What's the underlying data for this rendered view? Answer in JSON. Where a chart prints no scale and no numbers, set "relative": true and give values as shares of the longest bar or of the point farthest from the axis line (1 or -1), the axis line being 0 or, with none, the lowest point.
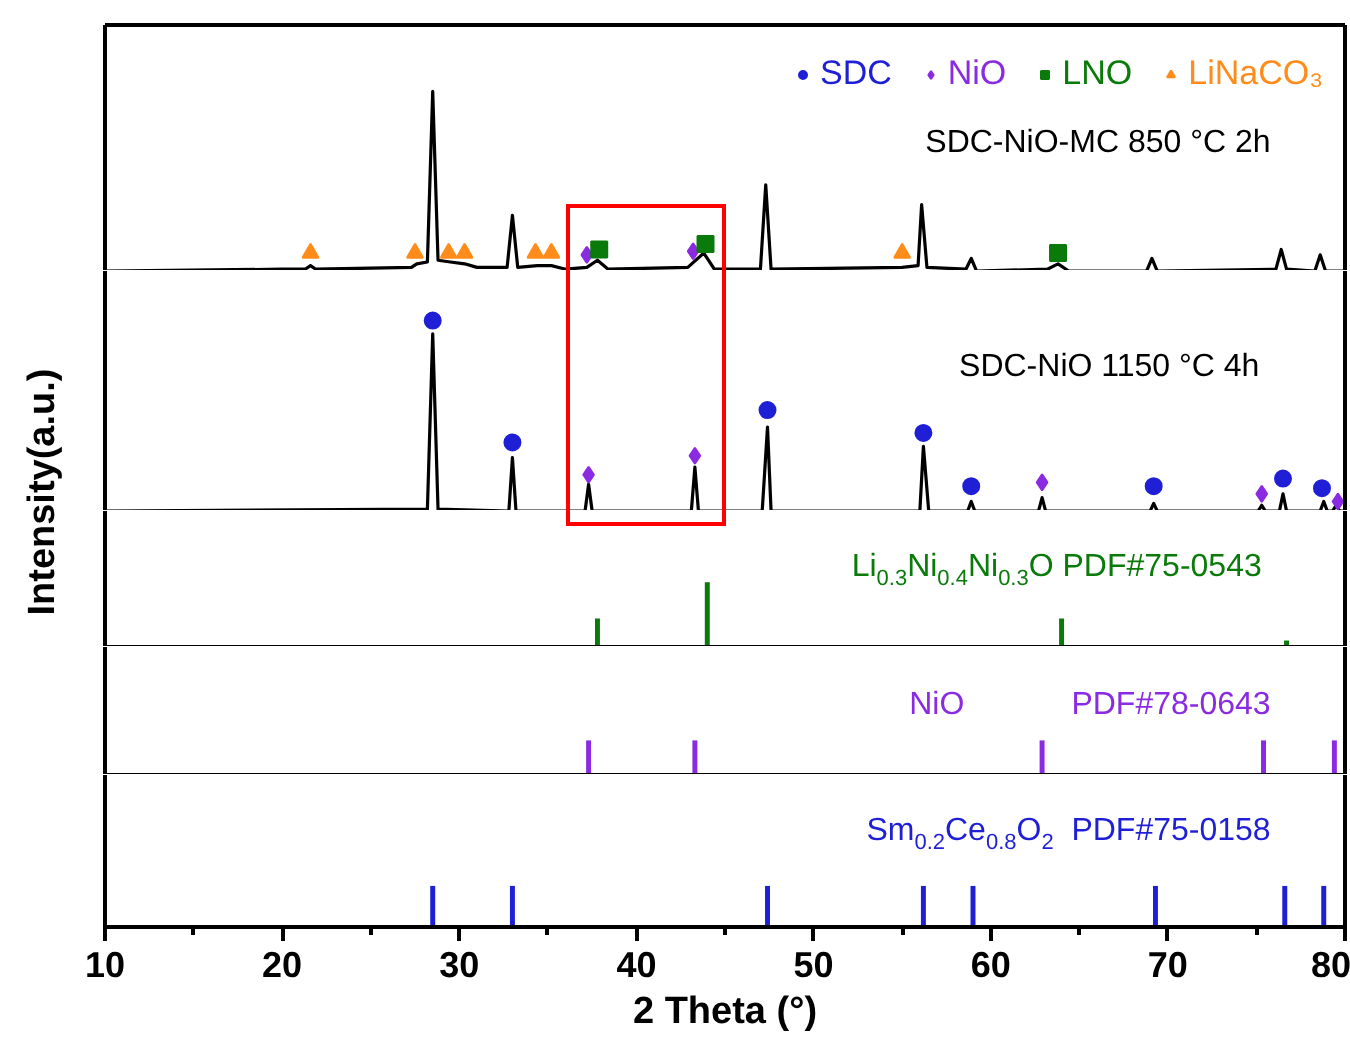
{
  "chart_data": [
    {
      "type": "line",
      "relative": true,
      "xlim": [
        10,
        80
      ],
      "tick_labels": false,
      "legend": "top right",
      "annotations": [
        "SDC-NiO-MC  850 °C 2h"
      ],
      "x": [
        10,
        20,
        21.3,
        21.6,
        21.9,
        27.3,
        27.6,
        28.2,
        28.5,
        28.8,
        29.5,
        30.3,
        31,
        32.7,
        33.0,
        33.3,
        34.4,
        35.2,
        36,
        37.2,
        37.8,
        38.4,
        42.9,
        43.8,
        44.4,
        47.0,
        47.3,
        47.6,
        55.0,
        55.9,
        56.1,
        56.4,
        58.6,
        58.9,
        59.2,
        63.2,
        63.8,
        64.4,
        68.8,
        69.1,
        69.4,
        76.1,
        76.4,
        76.7,
        78.3,
        78.6,
        78.9,
        80
      ],
      "series": [
        {
          "color": "#000000",
          "values": [
            0.0,
            0.01,
            0.01,
            0.03,
            0.01,
            0.02,
            0.04,
            0.05,
            1.0,
            0.06,
            0.05,
            0.04,
            0.02,
            0.02,
            0.31,
            0.02,
            0.03,
            0.03,
            0.01,
            0.02,
            0.06,
            0.01,
            0.02,
            0.1,
            0.01,
            0.01,
            0.48,
            0.01,
            0.02,
            0.03,
            0.37,
            0.02,
            0.01,
            0.07,
            0.0,
            0.01,
            0.04,
            0.0,
            0.0,
            0.07,
            0.0,
            0.01,
            0.12,
            0.01,
            0.0,
            0.09,
            0.0,
            0.0
          ]
        },
        {
          "type": "scatter",
          "name": "SDC",
          "color": "#1f1fd6",
          "marker": "circle",
          "values": [
            null,
            null,
            null,
            null,
            null,
            null,
            null,
            null,
            null,
            null,
            null,
            null,
            null,
            null,
            null,
            null,
            null,
            null,
            null,
            null,
            null,
            null,
            null,
            null,
            null,
            null,
            null,
            null,
            null,
            null,
            null,
            null,
            null,
            null,
            null,
            null,
            null,
            null,
            null,
            null,
            null,
            null,
            null,
            null,
            null,
            null,
            null,
            null
          ]
        },
        {
          "type": "scatter",
          "name": "NiO",
          "color": "#8a2be2",
          "marker": "diamond",
          "x": [
            37.2,
            43.2
          ],
          "values": [
            0.09,
            0.11
          ]
        },
        {
          "type": "scatter",
          "name": "LNO",
          "color": "#0a7a0a",
          "marker": "square",
          "x": [
            37.9,
            43.9,
            63.8
          ],
          "values": [
            0.12,
            0.15,
            0.1
          ]
        },
        {
          "type": "scatter",
          "name": "LiNaCO₃",
          "color": "#ff8c1a",
          "marker": "triangle",
          "x": [
            21.6,
            27.5,
            29.4,
            30.3,
            34.3,
            35.2,
            55.0
          ],
          "values": [
            0.1,
            0.1,
            0.1,
            0.1,
            0.1,
            0.1,
            0.1
          ]
        }
      ]
    },
    {
      "type": "line",
      "relative": true,
      "xlim": [
        10,
        80
      ],
      "tick_labels": false,
      "ylabel": "Intensity(a.u.)",
      "annotations": [
        "SDC-NiO  1150 °C 4h"
      ],
      "x": [
        10,
        28.2,
        28.5,
        28.8,
        32.8,
        33.0,
        33.2,
        37.1,
        37.3,
        37.5,
        43.1,
        43.3,
        43.5,
        47.1,
        47.4,
        47.6,
        56.0,
        56.2,
        56.5,
        58.7,
        58.9,
        59.1,
        62.7,
        62.9,
        63.1,
        69.0,
        69.2,
        69.4,
        75.1,
        75.3,
        75.5,
        76.3,
        76.5,
        76.7,
        78.6,
        78.8,
        79.0,
        79.3,
        79.5,
        79.7,
        80
      ],
      "series": [
        {
          "color": "#000000",
          "values": [
            0,
            0.01,
            0.93,
            0.01,
            0,
            0.28,
            0,
            0,
            0.14,
            0,
            0,
            0.23,
            0,
            0,
            0.44,
            0,
            0,
            0.34,
            0,
            0,
            0.05,
            0,
            0,
            0.07,
            0,
            0,
            0.04,
            0,
            0,
            0.03,
            0,
            0,
            0.09,
            0,
            0,
            0.05,
            0,
            0,
            0.03,
            0,
            0
          ]
        },
        {
          "type": "scatter",
          "color": "#1f1fd6",
          "marker": "circle",
          "x": [
            28.5,
            33.0,
            47.4,
            56.2,
            58.9,
            69.2,
            76.5,
            78.7
          ],
          "values": [
            1.0,
            0.36,
            0.53,
            0.41,
            0.13,
            0.13,
            0.17,
            0.12
          ]
        },
        {
          "type": "scatter",
          "color": "#8a2be2",
          "marker": "diamond",
          "x": [
            37.3,
            43.3,
            62.9,
            75.3,
            79.6
          ],
          "values": [
            0.19,
            0.29,
            0.15,
            0.09,
            0.05
          ]
        }
      ]
    },
    {
      "type": "bar",
      "relative": true,
      "xlim": [
        10,
        80
      ],
      "tick_labels": false,
      "annotations": [
        "Li$_{0.3}$Ni$_{0.4}$Ni$_{0.3}$O  PDF#75-0543"
      ],
      "x": [
        37.8,
        44.0,
        64.0,
        76.7
      ],
      "values": [
        0.44,
        1,
        0.44,
        0.1
      ],
      "color": "#0a7a0a"
    },
    {
      "type": "bar",
      "relative": true,
      "xlim": [
        10,
        80
      ],
      "tick_labels": false,
      "annotations": [
        "NiO",
        "PDF#78-0643"
      ],
      "x": [
        37.3,
        43.3,
        62.9,
        75.4,
        79.4
      ],
      "values": [
        1,
        1,
        1,
        1,
        1
      ],
      "color": "#8a2be2"
    },
    {
      "type": "bar",
      "relative": true,
      "xlim": [
        10,
        80
      ],
      "tick_labels": "x",
      "xlabel": "2 Theta (°)",
      "xticks": [
        10,
        {
          "value": 15,
          "label": null
        },
        20,
        {
          "value": 25,
          "label": null
        },
        30,
        {
          "value": 35,
          "label": null
        },
        40,
        {
          "value": 45,
          "label": null
        },
        50,
        {
          "value": 55,
          "label": null
        },
        60,
        {
          "value": 65,
          "label": null
        },
        70,
        {
          "value": 75,
          "label": null
        },
        80
      ],
      "annotations": [
        "Sm$_{0.2}$Ce$_{0.8}$O$_{2}$  PDF#75-0158"
      ],
      "x": [
        28.5,
        33.0,
        47.4,
        56.2,
        59.0,
        69.3,
        76.6,
        78.8
      ],
      "values": [
        1,
        1,
        1,
        1,
        1,
        1,
        1,
        1
      ],
      "color": "#1f1fd6"
    }
  ]
}
